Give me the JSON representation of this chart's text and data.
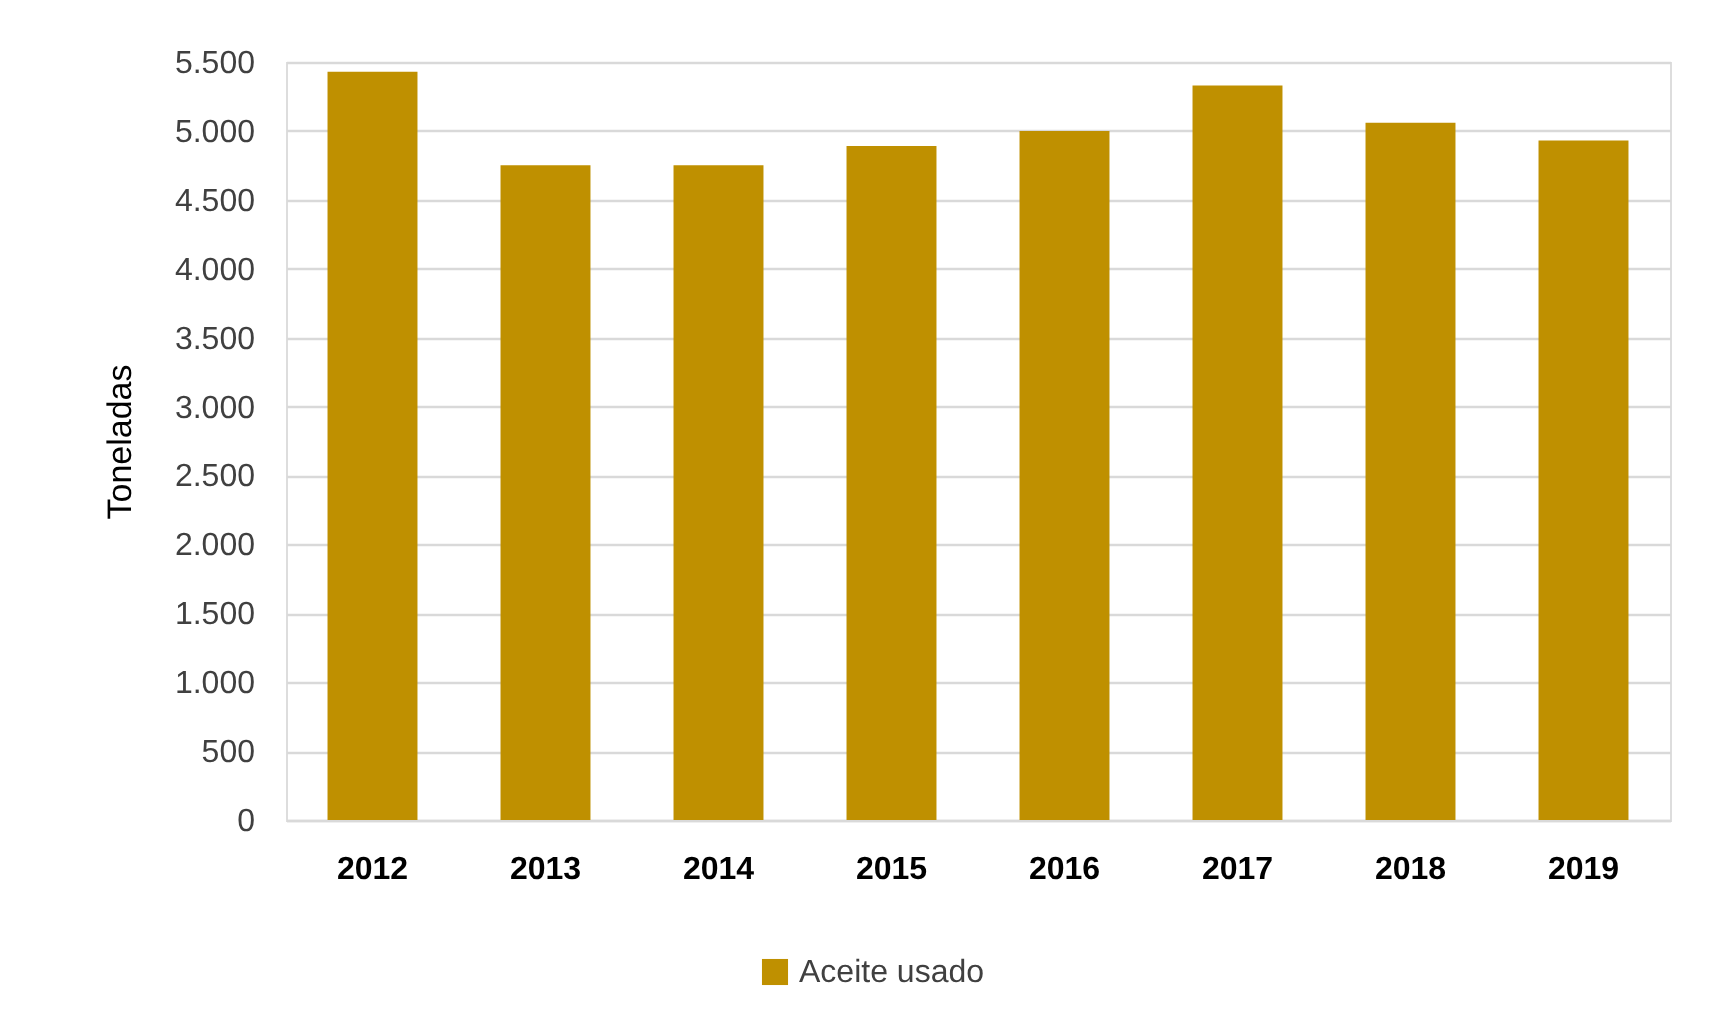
{
  "chart_data": {
    "type": "bar",
    "ylabel": "Toneladas",
    "categories": [
      "2012",
      "2013",
      "2014",
      "2015",
      "2016",
      "2017",
      "2018",
      "2019"
    ],
    "series": [
      {
        "name": "Aceite usado",
        "color": "#bf9000",
        "values": [
          5430,
          4750,
          4750,
          4890,
          5000,
          5330,
          5060,
          4930
        ]
      }
    ],
    "ylim": [
      0,
      5500
    ],
    "yticks": [
      0,
      500,
      {
        "value": 1000,
        "label": "1.000"
      },
      {
        "value": 1500,
        "label": "1.500"
      },
      {
        "value": 2000,
        "label": "2.000"
      },
      {
        "value": 2500,
        "label": "2.500"
      },
      {
        "value": 3000,
        "label": "3.000"
      },
      {
        "value": 3500,
        "label": "3.500"
      },
      {
        "value": 4000,
        "label": "4.000"
      },
      {
        "value": 4500,
        "label": "4.500"
      },
      {
        "value": 5000,
        "label": "5.000"
      },
      {
        "value": 5500,
        "label": "5.500"
      }
    ],
    "grid": "y",
    "legend": "bottom"
  }
}
